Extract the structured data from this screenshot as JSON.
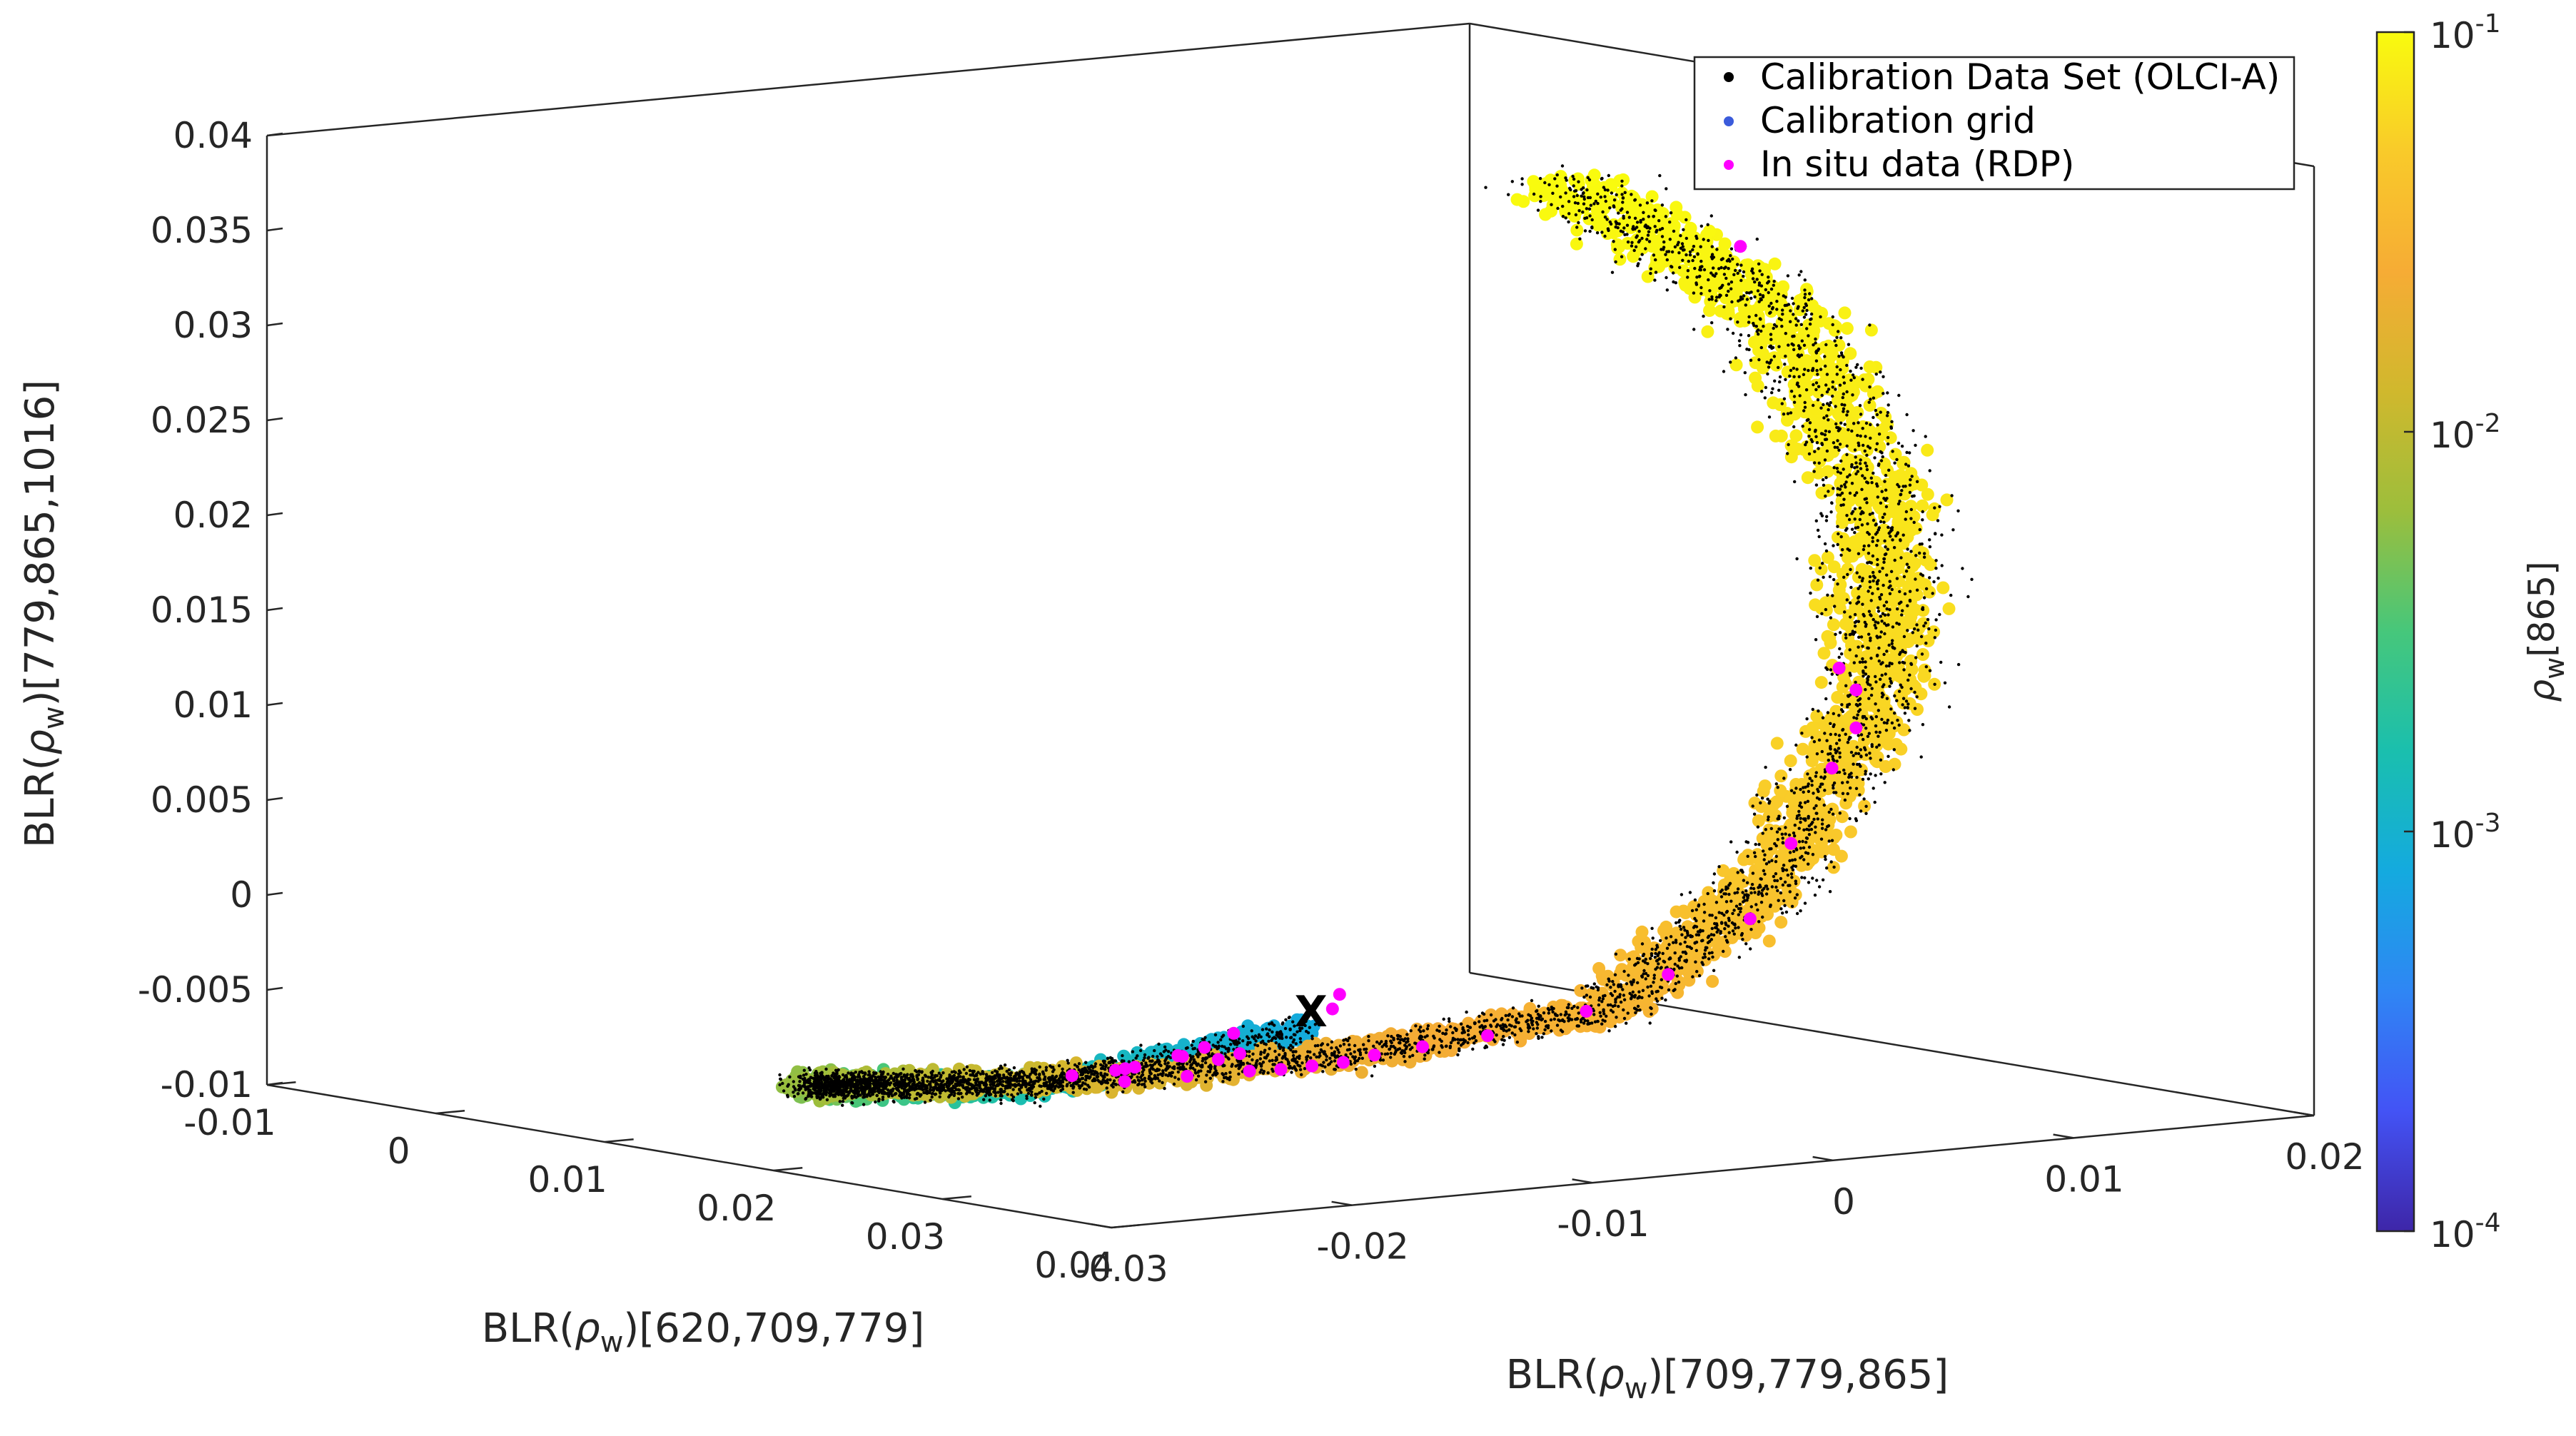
{
  "chart_data": {
    "type": "scatter3d",
    "axes": {
      "x": {
        "label_pre": "BLR(",
        "label_sym": "ρ",
        "label_sub": "w",
        "label_post": ")[620,709,779]",
        "range": [
          -0.01,
          0.04
        ],
        "ticks": [
          -0.01,
          0,
          0.01,
          0.02,
          0.03,
          0.04
        ],
        "tick_labels": [
          "-0.01",
          "0",
          "0.01",
          "0.02",
          "0.03",
          "0.04"
        ]
      },
      "y": {
        "label_pre": "BLR(",
        "label_sym": "ρ",
        "label_sub": "w",
        "label_post": ")[709,779,865]",
        "range": [
          -0.03,
          0.02
        ],
        "ticks": [
          -0.03,
          -0.02,
          -0.01,
          0,
          0.01,
          0.02
        ],
        "tick_labels": [
          "-0.03",
          "-0.02",
          "-0.01",
          "0",
          "0.01",
          "0.02"
        ]
      },
      "z": {
        "label_pre": "BLR(",
        "label_sym": "ρ",
        "label_sub": "w",
        "label_post": ")[779,865,1016]",
        "range": [
          -0.01,
          0.04
        ],
        "ticks": [
          -0.01,
          -0.005,
          0,
          0.005,
          0.01,
          0.015,
          0.02,
          0.025,
          0.03,
          0.035,
          0.04
        ],
        "tick_labels": [
          "-0.01",
          "-0.005",
          "0",
          "0.005",
          "0.01",
          "0.015",
          "0.02",
          "0.025",
          "0.03",
          "0.035",
          "0.04"
        ]
      }
    },
    "legend": {
      "position": "top-right",
      "entries": [
        {
          "label": "Calibration Data Set (OLCI-A)",
          "color": "#000000"
        },
        {
          "label": "Calibration grid",
          "color": "#3b5bdb"
        },
        {
          "label": "In situ data (RDP)",
          "color": "#ff00ff"
        }
      ]
    },
    "colorbar": {
      "label_sym": "ρ",
      "label_sub": "w",
      "label_post": "[865]",
      "scale": "log",
      "range": [
        0.0001,
        0.1
      ],
      "ticks": [
        {
          "base": "10",
          "exp": "-4"
        },
        {
          "base": "10",
          "exp": "-3"
        },
        {
          "base": "10",
          "exp": "-2"
        },
        {
          "base": "10",
          "exp": "-1"
        }
      ],
      "colormap": [
        "#3e26a8",
        "#4353f5",
        "#2f86f4",
        "#14aadf",
        "#1abfae",
        "#46c77b",
        "#9cbe3c",
        "#d0b82d",
        "#f6ac35",
        "#f9ca2a",
        "#f9fb0e"
      ]
    },
    "marker_label": "X",
    "series": [
      {
        "name": "Calibration grid",
        "description": "dense spiral of grid points coloured by rho_w[865], rising from a small blue loop to a tall yellow arm",
        "spiral_path": [
          {
            "x": 0.04,
            "y": -0.022,
            "z": -0.0005
          },
          {
            "x": 0.03,
            "y": -0.026,
            "z": -0.0045
          },
          {
            "x": 0.018,
            "y": -0.025,
            "z": -0.0065
          },
          {
            "x": 0.008,
            "y": -0.02,
            "z": -0.0085
          },
          {
            "x": 0.004,
            "y": -0.012,
            "z": -0.01
          },
          {
            "x": 0.004,
            "y": -0.004,
            "z": -0.0105
          },
          {
            "x": 0.008,
            "y": 0.003,
            "z": -0.0095
          },
          {
            "x": 0.014,
            "y": 0.009,
            "z": -0.007
          },
          {
            "x": 0.018,
            "y": 0.013,
            "z": 0.0
          },
          {
            "x": 0.02,
            "y": 0.016,
            "z": 0.01
          },
          {
            "x": 0.02,
            "y": 0.016,
            "z": 0.02
          },
          {
            "x": 0.018,
            "y": 0.013,
            "z": 0.03
          },
          {
            "x": 0.014,
            "y": 0.007,
            "z": 0.037
          }
        ],
        "rho_w865": [
          0.0008,
          0.0015,
          0.003,
          0.006,
          0.01,
          0.015,
          0.022,
          0.03,
          0.045,
          0.06,
          0.075,
          0.088,
          0.1
        ]
      },
      {
        "name": "In situ data (RDP)",
        "color": "#ff00ff",
        "points": [
          {
            "x": 0.036,
            "y": -0.018,
            "z": -0.0005
          },
          {
            "x": 0.033,
            "y": -0.02,
            "z": -0.002
          },
          {
            "x": 0.03,
            "y": -0.022,
            "z": -0.004
          },
          {
            "x": 0.028,
            "y": -0.021,
            "z": -0.0045
          },
          {
            "x": 0.026,
            "y": -0.02,
            "z": -0.005
          },
          {
            "x": 0.022,
            "y": -0.019,
            "z": -0.006
          },
          {
            "x": 0.018,
            "y": -0.014,
            "z": -0.0075
          },
          {
            "x": 0.016,
            "y": -0.01,
            "z": -0.008
          },
          {
            "x": 0.014,
            "y": -0.006,
            "z": -0.0085
          },
          {
            "x": 0.013,
            "y": -0.004,
            "z": -0.0088
          },
          {
            "x": 0.012,
            "y": -0.002,
            "z": -0.009
          },
          {
            "x": 0.011,
            "y": 0.0,
            "z": -0.0092
          },
          {
            "x": 0.01,
            "y": 0.002,
            "z": -0.0092
          },
          {
            "x": 0.01,
            "y": 0.004,
            "z": -0.009
          },
          {
            "x": 0.011,
            "y": 0.006,
            "z": -0.0085
          },
          {
            "x": 0.014,
            "y": 0.008,
            "z": -0.007
          },
          {
            "x": 0.016,
            "y": 0.01,
            "z": -0.005
          },
          {
            "x": 0.018,
            "y": 0.012,
            "z": -0.002
          },
          {
            "x": 0.019,
            "y": 0.013,
            "z": 0.002
          },
          {
            "x": 0.02,
            "y": 0.014,
            "z": 0.006
          },
          {
            "x": 0.02,
            "y": 0.015,
            "z": 0.008
          },
          {
            "x": 0.02,
            "y": 0.015,
            "z": 0.01
          },
          {
            "x": 0.019,
            "y": 0.015,
            "z": 0.011
          },
          {
            "x": 0.016,
            "y": 0.013,
            "z": 0.033
          },
          {
            "x": 0.035,
            "y": -0.017,
            "z": 0.0
          },
          {
            "x": 0.027,
            "y": -0.017,
            "z": -0.004
          },
          {
            "x": 0.024,
            "y": -0.016,
            "z": -0.005
          },
          {
            "x": 0.02,
            "y": -0.013,
            "z": -0.006
          },
          {
            "x": 0.015,
            "y": -0.008,
            "z": -0.0075
          },
          {
            "x": 0.012,
            "y": -0.005,
            "z": -0.008
          }
        ]
      },
      {
        "name": "Calibration Data Set (OLCI-A)",
        "color": "#000000",
        "description": "black dots densely scattered over the calibration grid"
      }
    ]
  }
}
